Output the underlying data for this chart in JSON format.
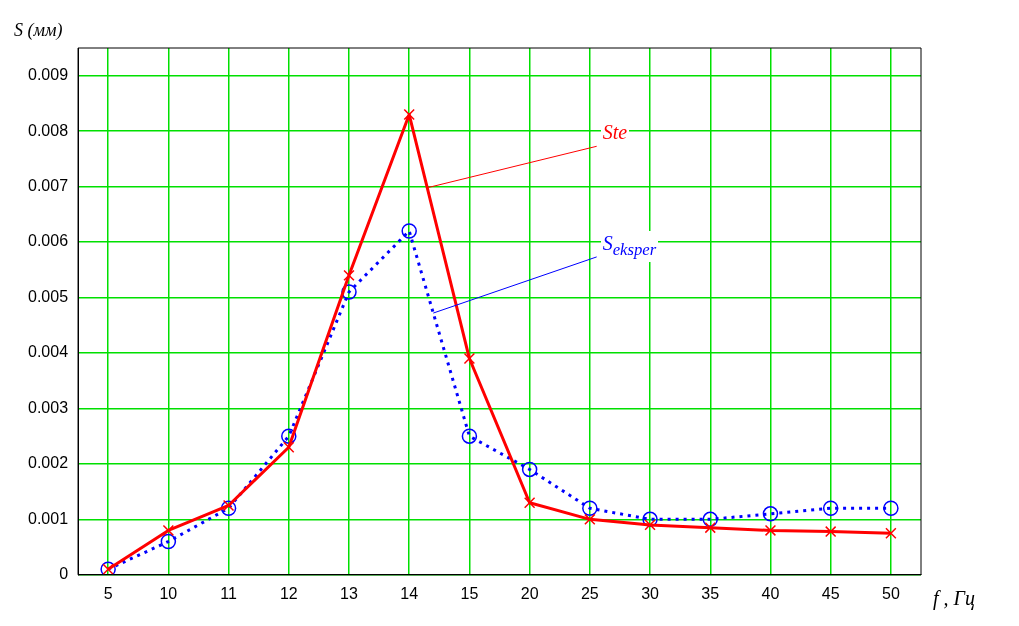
{
  "chart_data": {
    "type": "line",
    "xlabel": "f , Гц",
    "ylabel": "S (мм)",
    "categories": [
      "5",
      "10",
      "11",
      "12",
      "13",
      "14",
      "15",
      "20",
      "25",
      "30",
      "35",
      "40",
      "45",
      "50"
    ],
    "ylim": [
      0,
      0.0095
    ],
    "yticks": [
      0,
      0.001,
      0.002,
      0.003,
      0.004,
      0.005,
      0.006,
      0.007,
      0.008,
      0.009
    ],
    "grid": true,
    "legend": false,
    "series": [
      {
        "name": "Ste",
        "color": "#ff0000",
        "marker": "cross",
        "line_style": "solid",
        "values": [
          0.0001,
          0.0008,
          0.00125,
          0.0023,
          0.0054,
          0.0083,
          0.0039,
          0.0013,
          0.001,
          0.0009,
          0.00085,
          0.0008,
          0.00078,
          0.00075
        ]
      },
      {
        "name": "S$_{eksper}$",
        "color": "#0000ff",
        "marker": "circle",
        "line_style": "dotted",
        "values": [
          0.0001,
          0.0006,
          0.0012,
          0.0025,
          0.0051,
          0.0062,
          0.0025,
          0.0019,
          0.0012,
          0.001,
          0.001,
          0.0011,
          0.0012,
          0.0012
        ]
      }
    ]
  }
}
